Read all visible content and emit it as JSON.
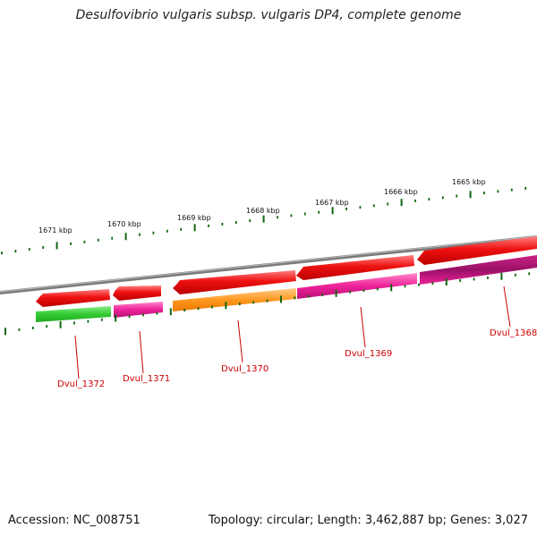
{
  "title": "Desulfovibrio vulgaris subsp. vulgaris DP4, complete genome",
  "footer": {
    "accession": "Accession: NC_008751",
    "summary": "Topology: circular; Length: 3,462,887 bp; Genes: 3,027"
  },
  "scale_labels": [
    "1671 kbp",
    "1670 kbp",
    "1669 kbp",
    "1668 kbp",
    "1667 kbp",
    "1666 kbp",
    "1665 kbp"
  ],
  "gene_labels": [
    "Dvul_1372",
    "Dvul_1371",
    "Dvul_1370",
    "Dvul_1369",
    "Dvul_1368"
  ],
  "colors": {
    "backbone": "#7a7a7a",
    "cds": "#ee1111",
    "green": "#33cc33",
    "magenta": "#ee2299",
    "orange": "#ff9922",
    "tick": "#116611",
    "label": "#cc0000"
  }
}
